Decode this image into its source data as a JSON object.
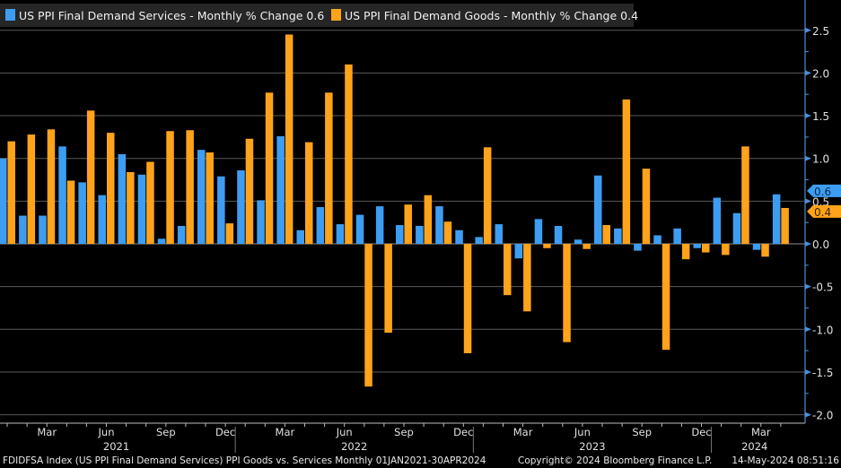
{
  "chart_data": {
    "type": "bar",
    "title": "",
    "xlabel": "",
    "ylabel": "",
    "ylim": [
      -2.0,
      2.7
    ],
    "yticks": [
      "2.5",
      "2.0",
      "1.5",
      "1.0",
      "0.5",
      "0.0",
      "-0.5",
      "-1.0",
      "-1.5",
      "-2.0"
    ],
    "grid": true,
    "legend_position": "top-left",
    "x_range": [
      "Jan 2021",
      "Apr 2024"
    ],
    "month_tick_labels": [
      {
        "label": "Mar",
        "month_index": 2
      },
      {
        "label": "Jun",
        "month_index": 5
      },
      {
        "label": "Sep",
        "month_index": 8
      },
      {
        "label": "Dec",
        "month_index": 11
      },
      {
        "label": "Mar",
        "month_index": 14
      },
      {
        "label": "Jun",
        "month_index": 17
      },
      {
        "label": "Sep",
        "month_index": 20
      },
      {
        "label": "Dec",
        "month_index": 23
      },
      {
        "label": "Mar",
        "month_index": 26
      },
      {
        "label": "Jun",
        "month_index": 29
      },
      {
        "label": "Sep",
        "month_index": 32
      },
      {
        "label": "Dec",
        "month_index": 35
      },
      {
        "label": "Mar",
        "month_index": 38
      }
    ],
    "year_labels": [
      {
        "label": "2021",
        "start": 0,
        "end": 11
      },
      {
        "label": "2022",
        "start": 12,
        "end": 23
      },
      {
        "label": "2023",
        "start": 24,
        "end": 35
      },
      {
        "label": "2024",
        "start": 36,
        "end": 39
      }
    ],
    "series": [
      {
        "name": "US PPI Final Demand Services - Monthly % Change 0.6",
        "color": "#3d9df3",
        "last_value_label": "0.6",
        "values": [
          1.0,
          0.33,
          0.33,
          1.14,
          0.72,
          0.57,
          1.05,
          0.81,
          0.06,
          0.21,
          1.1,
          0.79,
          0.86,
          0.51,
          1.26,
          0.16,
          0.43,
          0.23,
          0.34,
          0.44,
          0.22,
          0.21,
          0.44,
          0.16,
          0.08,
          0.23,
          -0.17,
          0.29,
          0.21,
          0.05,
          0.8,
          0.18,
          -0.08,
          0.1,
          0.18,
          -0.05,
          0.54,
          0.36,
          -0.07,
          0.58
        ]
      },
      {
        "name": "US PPI Final Demand Goods - Monthly % Change 0.4",
        "color": "#ffa31a",
        "last_value_label": "0.4",
        "values": [
          1.2,
          1.28,
          1.34,
          0.74,
          1.56,
          1.3,
          0.84,
          0.96,
          1.32,
          1.33,
          1.07,
          0.24,
          1.23,
          1.77,
          2.45,
          1.19,
          1.77,
          2.1,
          -1.67,
          -1.04,
          0.46,
          0.57,
          0.26,
          -1.28,
          1.13,
          -0.6,
          -0.79,
          -0.05,
          -1.15,
          -0.06,
          0.22,
          1.69,
          0.88,
          -1.24,
          -0.18,
          -0.1,
          -0.13,
          1.14,
          -0.15,
          0.42
        ]
      }
    ]
  },
  "footer": {
    "left": "FDIDFSA Index (US PPI Final Demand Services) PPI Goods vs. Services  Monthly 01JAN2021-30APR2024",
    "copyright": "Copyright© 2024 Bloomberg Finance L.P.",
    "timestamp": "14-May-2024 08:51:16"
  }
}
